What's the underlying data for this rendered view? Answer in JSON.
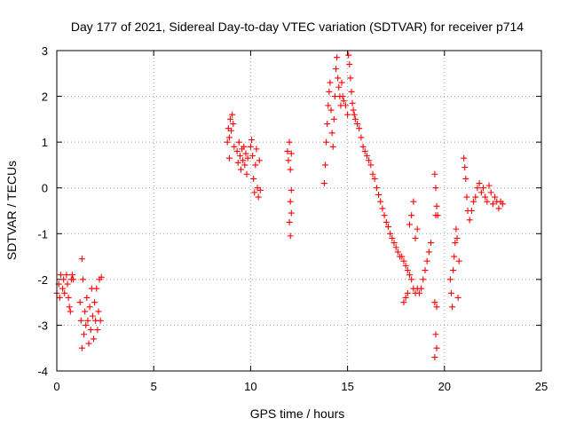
{
  "chart_data": {
    "type": "scatter",
    "title": "Day 177 of 2021, Sidereal Day-to-day VTEC variation (SDTVAR) for receiver p714",
    "xlabel": "GPS time / hours",
    "ylabel": "SDTVAR / TECUs",
    "xlim": [
      0,
      25
    ],
    "ylim": [
      -4,
      3
    ],
    "xticks": [
      0,
      5,
      10,
      15,
      20,
      25
    ],
    "yticks": [
      -4,
      -3,
      -2,
      -1,
      0,
      1,
      2,
      3
    ],
    "grid": true,
    "marker": "+",
    "color": "#ff0000",
    "series": [
      {
        "name": "SDTVAR",
        "points": [
          [
            0.0,
            -2.3
          ],
          [
            0.1,
            -2.1
          ],
          [
            0.15,
            -2.4
          ],
          [
            0.2,
            -1.9
          ],
          [
            0.3,
            -2.2
          ],
          [
            0.35,
            -2.0
          ],
          [
            0.4,
            -2.3
          ],
          [
            0.5,
            -1.9
          ],
          [
            0.55,
            -2.1
          ],
          [
            0.6,
            -2.4
          ],
          [
            0.65,
            -2.6
          ],
          [
            0.7,
            -2.7
          ],
          [
            0.75,
            -2.0
          ],
          [
            0.8,
            -1.9
          ],
          [
            0.85,
            -2.0
          ],
          [
            1.2,
            -2.5
          ],
          [
            1.25,
            -2.9
          ],
          [
            1.3,
            -3.5
          ],
          [
            1.3,
            -1.55
          ],
          [
            1.35,
            -2.0
          ],
          [
            1.4,
            -3.2
          ],
          [
            1.45,
            -2.7
          ],
          [
            1.5,
            -3.0
          ],
          [
            1.55,
            -2.4
          ],
          [
            1.6,
            -2.9
          ],
          [
            1.65,
            -3.4
          ],
          [
            1.7,
            -2.6
          ],
          [
            1.75,
            -3.1
          ],
          [
            1.8,
            -2.2
          ],
          [
            1.85,
            -2.8
          ],
          [
            1.9,
            -3.3
          ],
          [
            1.95,
            -2.5
          ],
          [
            2.0,
            -2.9
          ],
          [
            2.05,
            -2.2
          ],
          [
            2.1,
            -3.1
          ],
          [
            2.15,
            -2.7
          ],
          [
            2.2,
            -2.0
          ],
          [
            2.25,
            -2.9
          ],
          [
            2.3,
            -1.95
          ],
          [
            8.8,
            1.0
          ],
          [
            8.85,
            1.3
          ],
          [
            8.9,
            1.1
          ],
          [
            8.95,
            1.5
          ],
          [
            9.0,
            1.25
          ],
          [
            9.05,
            1.6
          ],
          [
            9.1,
            1.4
          ],
          [
            9.15,
            0.9
          ],
          [
            8.9,
            0.65
          ],
          [
            9.3,
            0.8
          ],
          [
            9.35,
            0.55
          ],
          [
            9.4,
            1.0
          ],
          [
            9.45,
            0.7
          ],
          [
            9.5,
            0.4
          ],
          [
            9.55,
            0.85
          ],
          [
            9.6,
            0.6
          ],
          [
            9.65,
            0.9
          ],
          [
            9.7,
            0.5
          ],
          [
            9.75,
            0.75
          ],
          [
            9.8,
            0.3
          ],
          [
            9.85,
            0.65
          ],
          [
            10.0,
            0.9
          ],
          [
            10.05,
            1.05
          ],
          [
            10.1,
            0.7
          ],
          [
            10.15,
            0.2
          ],
          [
            10.2,
            -0.1
          ],
          [
            10.25,
            0.5
          ],
          [
            10.3,
            0.85
          ],
          [
            10.35,
            0.0
          ],
          [
            10.4,
            -0.2
          ],
          [
            10.45,
            0.6
          ],
          [
            10.5,
            -0.05
          ],
          [
            11.9,
            0.8
          ],
          [
            11.95,
            0.6
          ],
          [
            12.0,
            1.0
          ],
          [
            12.05,
            0.4
          ],
          [
            12.1,
            0.75
          ],
          [
            12.1,
            -0.05
          ],
          [
            12.05,
            -0.3
          ],
          [
            12.1,
            -0.55
          ],
          [
            12.0,
            -0.75
          ],
          [
            12.05,
            -1.05
          ],
          [
            13.8,
            0.1
          ],
          [
            13.85,
            0.5
          ],
          [
            13.9,
            1.0
          ],
          [
            13.95,
            1.4
          ],
          [
            14.0,
            1.8
          ],
          [
            14.05,
            2.1
          ],
          [
            14.1,
            2.3
          ],
          [
            14.15,
            1.7
          ],
          [
            14.2,
            1.2
          ],
          [
            14.25,
            0.9
          ],
          [
            14.3,
            1.5
          ],
          [
            14.35,
            2.0
          ],
          [
            14.4,
            2.6
          ],
          [
            14.45,
            2.85
          ],
          [
            14.5,
            2.4
          ],
          [
            14.55,
            2.2
          ],
          [
            14.6,
            2.0
          ],
          [
            14.65,
            1.8
          ],
          [
            14.7,
            2.3
          ],
          [
            14.75,
            2.0
          ],
          [
            14.8,
            1.9
          ],
          [
            14.9,
            1.8
          ],
          [
            15.0,
            1.6
          ],
          [
            15.05,
            2.9
          ],
          [
            15.1,
            2.7
          ],
          [
            15.15,
            2.4
          ],
          [
            15.2,
            2.1
          ],
          [
            15.25,
            1.85
          ],
          [
            15.3,
            1.7
          ],
          [
            15.35,
            1.6
          ],
          [
            15.4,
            1.5
          ],
          [
            15.5,
            1.4
          ],
          [
            15.6,
            1.3
          ],
          [
            15.7,
            1.1
          ],
          [
            15.8,
            0.9
          ],
          [
            15.9,
            0.8
          ],
          [
            16.0,
            0.7
          ],
          [
            16.1,
            0.6
          ],
          [
            16.2,
            0.5
          ],
          [
            16.3,
            0.3
          ],
          [
            16.4,
            0.2
          ],
          [
            16.5,
            0.0
          ],
          [
            16.6,
            -0.15
          ],
          [
            16.7,
            -0.3
          ],
          [
            16.8,
            -0.45
          ],
          [
            16.9,
            -0.6
          ],
          [
            17.0,
            -0.75
          ],
          [
            17.1,
            -0.85
          ],
          [
            17.2,
            -1.0
          ],
          [
            17.3,
            -1.1
          ],
          [
            17.4,
            -1.2
          ],
          [
            17.5,
            -1.3
          ],
          [
            17.6,
            -1.4
          ],
          [
            17.7,
            -1.5
          ],
          [
            17.8,
            -1.5
          ],
          [
            17.9,
            -1.6
          ],
          [
            18.0,
            -1.7
          ],
          [
            18.1,
            -1.8
          ],
          [
            18.2,
            -1.9
          ],
          [
            18.3,
            -2.0
          ],
          [
            18.4,
            -2.2
          ],
          [
            18.5,
            -2.3
          ],
          [
            18.6,
            -2.2
          ],
          [
            18.7,
            -2.3
          ],
          [
            18.8,
            -2.2
          ],
          [
            18.9,
            -2.0
          ],
          [
            19.0,
            -1.8
          ],
          [
            19.1,
            -1.6
          ],
          [
            19.2,
            -1.4
          ],
          [
            19.3,
            -1.2
          ],
          [
            18.5,
            -1.1
          ],
          [
            18.6,
            -0.9
          ],
          [
            18.3,
            -0.6
          ],
          [
            18.4,
            -0.3
          ],
          [
            18.2,
            -0.8
          ],
          [
            17.9,
            -2.5
          ],
          [
            18.0,
            -2.4
          ],
          [
            18.1,
            -2.3
          ],
          [
            19.5,
            0.3
          ],
          [
            19.55,
            0.0
          ],
          [
            19.6,
            -0.4
          ],
          [
            19.55,
            -0.6
          ],
          [
            19.5,
            -2.5
          ],
          [
            19.55,
            -3.2
          ],
          [
            19.6,
            -3.5
          ],
          [
            19.5,
            -3.7
          ],
          [
            19.6,
            -2.6
          ],
          [
            19.65,
            -0.6
          ],
          [
            20.3,
            -2.0
          ],
          [
            20.35,
            -2.3
          ],
          [
            20.4,
            -2.6
          ],
          [
            20.45,
            -1.8
          ],
          [
            20.5,
            -1.5
          ],
          [
            20.55,
            -1.2
          ],
          [
            20.6,
            -0.9
          ],
          [
            20.65,
            -1.1
          ],
          [
            20.7,
            -2.4
          ],
          [
            20.75,
            -1.6
          ],
          [
            21.0,
            0.65
          ],
          [
            21.05,
            0.45
          ],
          [
            21.1,
            0.2
          ],
          [
            21.15,
            -0.2
          ],
          [
            21.2,
            -0.5
          ],
          [
            21.3,
            -0.7
          ],
          [
            21.4,
            -0.5
          ],
          [
            21.5,
            -0.3
          ],
          [
            21.6,
            -0.2
          ],
          [
            21.7,
            0.0
          ],
          [
            21.8,
            0.1
          ],
          [
            21.9,
            -0.1
          ],
          [
            22.0,
            0.0
          ],
          [
            22.1,
            -0.2
          ],
          [
            22.2,
            -0.3
          ],
          [
            22.3,
            0.05
          ],
          [
            22.4,
            -0.1
          ],
          [
            22.5,
            -0.35
          ],
          [
            22.6,
            -0.2
          ],
          [
            22.7,
            -0.3
          ],
          [
            22.8,
            -0.45
          ],
          [
            22.9,
            -0.3
          ],
          [
            23.0,
            -0.35
          ]
        ]
      }
    ]
  }
}
